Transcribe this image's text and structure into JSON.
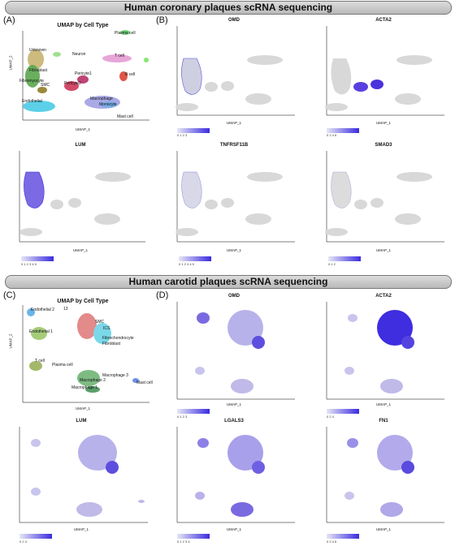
{
  "sections": {
    "coronary": "Human coronary plaques scRNA sequencing",
    "carotid": "Human carotid plaques scRNA sequencing"
  },
  "panel_letters": [
    "(A)",
    "(B)",
    "(C)",
    "(D)"
  ],
  "axes": {
    "x": "UMAP_1",
    "y": "UMAP_2"
  },
  "panelA": {
    "title": "UMAP by Cell Type",
    "clusters": [
      "Plasma cell",
      "Unknown",
      "Neuron",
      "T cell",
      "Fibroblast",
      "Fibromyocyte",
      "Pericyte1",
      "Pericyte2",
      "B cell",
      "SMC",
      "Endothelial",
      "Macrophage",
      "Monocyte",
      "Mast cell"
    ],
    "xticks": [
      "-10",
      "0",
      "10"
    ],
    "yticks": [
      "10",
      "0",
      "-10"
    ]
  },
  "panelB": {
    "genes": [
      "OMD",
      "ACTA2",
      "LUM",
      "TNFRSF11B",
      "SMAD3"
    ],
    "legends": [
      "0  1  2  3",
      "0  2  4  6",
      "0 1 2 3 4 5",
      "0 1 2 3 4 5",
      "0   1   2"
    ],
    "xticks": [
      "-10",
      "0",
      "10"
    ],
    "yticks": [
      "10",
      "0",
      "-10"
    ]
  },
  "panelC": {
    "title": "UMAP by Cell Type",
    "clusters": [
      "Endothelial 2",
      "13",
      "SMC",
      "ICS",
      "Endothelial 1",
      "Fibrochondrocyte",
      "Fibroblast",
      "T cell",
      "Plasma cell",
      "Macrophage 3",
      "Macrophage 2",
      "Macrophage 1",
      "Mast cell"
    ],
    "xticks": [
      "-10",
      "0",
      "10"
    ],
    "yticks": [
      "10",
      "5",
      "0",
      "-5",
      "-10",
      "-15"
    ]
  },
  "panelD": {
    "genes": [
      "OMD",
      "ACTA2",
      "LUM",
      "LGALS3",
      "FN1"
    ],
    "legends": [
      "0 1 2 3",
      "0  2  4",
      "0  2  4",
      "0 1 2 3 4",
      "0  2  4  6"
    ],
    "xticks": [
      "-10",
      "0",
      "10"
    ],
    "yticks": [
      "10",
      "5",
      "0",
      "-5",
      "-10",
      "-15"
    ]
  },
  "colors": {
    "expr_high": "#3b2be0",
    "expr_low": "#dcdcdc"
  }
}
